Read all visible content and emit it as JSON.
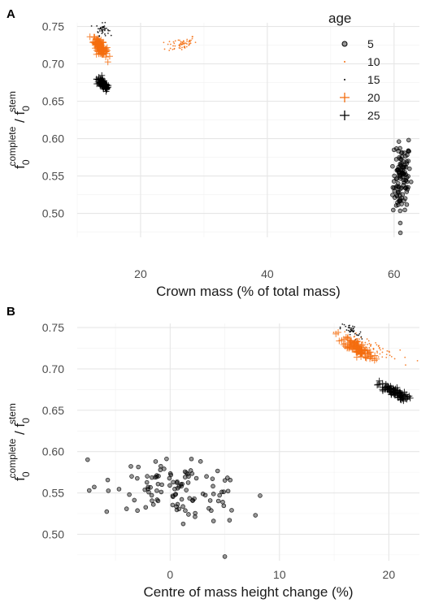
{
  "figure": {
    "colors": {
      "age_5": "#000000",
      "age_10": "#f46d0f",
      "age_15": "#000000",
      "age_20": "#f46d0f",
      "age_25": "#000000"
    }
  },
  "legend": {
    "title": "age",
    "entries": [
      {
        "label": "5",
        "shape": "circle-open",
        "color": "#000000"
      },
      {
        "label": "10",
        "shape": "dot",
        "color": "#f46d0f"
      },
      {
        "label": "15",
        "shape": "dot",
        "color": "#000000"
      },
      {
        "label": "20",
        "shape": "plus",
        "color": "#f46d0f"
      },
      {
        "label": "25",
        "shape": "plus",
        "color": "#000000"
      }
    ]
  },
  "chart_data": [
    {
      "panel_label": "A",
      "type": "scatter",
      "xlabel": "Crown mass (% of total mass)",
      "ylabel": {
        "base": "f",
        "sub": "0",
        "sup1": "complete",
        "sep": " / ",
        "sup2": "stem"
      },
      "xlim": [
        10,
        64
      ],
      "ylim": [
        0.468,
        0.755
      ],
      "xticks": [
        20,
        40,
        60
      ],
      "yticks": [
        0.5,
        0.55,
        0.6,
        0.65,
        0.7,
        0.75
      ],
      "yticklabels": [
        "0.50",
        "0.55",
        "0.60",
        "0.65",
        "0.70",
        "0.75"
      ],
      "grid": true,
      "series": [
        {
          "name": "5",
          "center": [
            61.2,
            0.545
          ],
          "spread": [
            0.7,
            0.022
          ],
          "n": 110,
          "corr": 0.2,
          "extra": [
            [
              61.0,
              0.474
            ],
            [
              62.3,
              0.598
            ],
            [
              60.0,
              0.585
            ]
          ]
        },
        {
          "name": "10",
          "center": [
            26.4,
            0.727
          ],
          "spread": [
            1.2,
            0.005
          ],
          "n": 60,
          "corr": 0.3
        },
        {
          "name": "15",
          "center": [
            14.0,
            0.746
          ],
          "spread": [
            0.5,
            0.004
          ],
          "n": 40,
          "corr": 0.0
        },
        {
          "name": "20",
          "center": [
            13.6,
            0.723
          ],
          "spread": [
            0.55,
            0.006
          ],
          "n": 110,
          "corr": -0.7
        },
        {
          "name": "25",
          "center": [
            14.1,
            0.672
          ],
          "spread": [
            0.5,
            0.005
          ],
          "n": 90,
          "corr": -0.75
        }
      ]
    },
    {
      "panel_label": "B",
      "type": "scatter",
      "xlabel": "Centre of mass height change (%)",
      "ylabel": {
        "base": "f",
        "sub": "0",
        "sup1": "complete",
        "sep": " / ",
        "sup2": "stem"
      },
      "xlim": [
        -8.5,
        22.8
      ],
      "ylim": [
        0.468,
        0.755
      ],
      "xticks": [
        0,
        10,
        20
      ],
      "yticks": [
        0.5,
        0.55,
        0.6,
        0.65,
        0.7,
        0.75
      ],
      "yticklabels": [
        "0.50",
        "0.55",
        "0.60",
        "0.65",
        "0.70",
        "0.75"
      ],
      "grid": true,
      "series": [
        {
          "name": "5",
          "center": [
            1.0,
            0.553
          ],
          "spread": [
            3.0,
            0.018
          ],
          "n": 110,
          "corr": -0.4,
          "extra": [
            [
              5.0,
              0.473
            ],
            [
              -7.4,
              0.553
            ],
            [
              7.8,
              0.523
            ]
          ]
        },
        {
          "name": "10",
          "center": [
            18.2,
            0.728
          ],
          "spread": [
            1.4,
            0.008
          ],
          "n": 60,
          "corr": -0.85
        },
        {
          "name": "15",
          "center": [
            16.6,
            0.745
          ],
          "spread": [
            0.5,
            0.005
          ],
          "n": 40,
          "corr": -0.5
        },
        {
          "name": "20",
          "center": [
            17.2,
            0.725
          ],
          "spread": [
            0.7,
            0.007
          ],
          "n": 110,
          "corr": -0.8
        },
        {
          "name": "25",
          "center": [
            20.3,
            0.673
          ],
          "spread": [
            0.7,
            0.005
          ],
          "n": 90,
          "corr": -0.8
        }
      ]
    }
  ]
}
